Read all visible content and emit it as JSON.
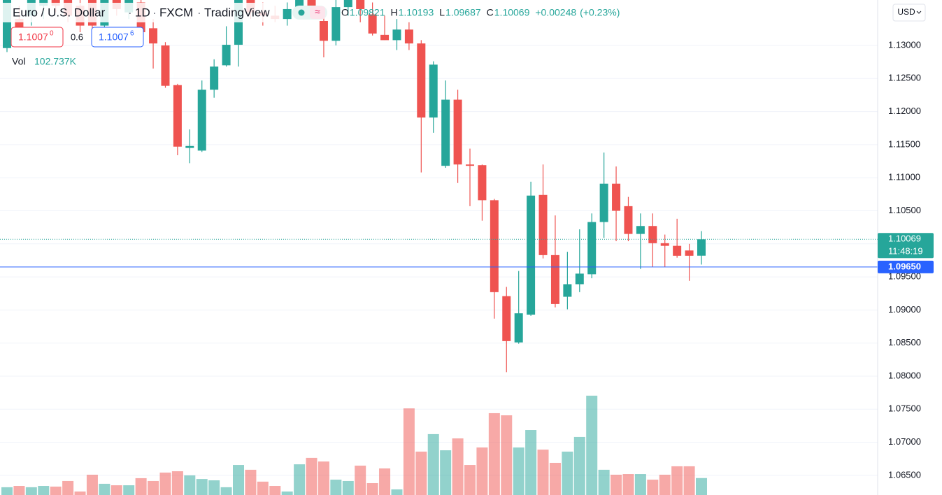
{
  "header": {
    "symbol": "Euro / U.S. Dollar",
    "interval": "1D",
    "source": "FXCM",
    "platform": "TradingView",
    "ohlc": [
      {
        "key": "O",
        "value": "1.09821"
      },
      {
        "key": "H",
        "value": "1.10193"
      },
      {
        "key": "L",
        "value": "1.09687"
      },
      {
        "key": "C",
        "value": "1.10069"
      }
    ],
    "change": "+0.00248",
    "change_pct": "(+0.23%)",
    "sell": "1.1007",
    "sell_sup": "0",
    "spread": "0.6",
    "buy": "1.1007",
    "buy_sup": "6",
    "vol_key": "Vol",
    "vol_value": "102.737K",
    "currency": "USD"
  },
  "chart_data": {
    "type": "candlestick",
    "up_color": "#26a69a",
    "down_color": "#ef5350",
    "ylim": [
      1.06203,
      1.13687
    ],
    "yticks": [
      {
        "value": 1.065,
        "label": "1.06500"
      },
      {
        "value": 1.07,
        "label": "1.07000"
      },
      {
        "value": 1.075,
        "label": "1.07500"
      },
      {
        "value": 1.08,
        "label": "1.08000"
      },
      {
        "value": 1.085,
        "label": "1.08500"
      },
      {
        "value": 1.09,
        "label": "1.09000"
      },
      {
        "value": 1.095,
        "label": "1.09500"
      },
      {
        "value": 1.1,
        "label": "1.10000"
      },
      {
        "value": 1.105,
        "label": "1.10500"
      },
      {
        "value": 1.11,
        "label": "1.11000"
      },
      {
        "value": 1.115,
        "label": "1.11500"
      },
      {
        "value": 1.12,
        "label": "1.12000"
      },
      {
        "value": 1.125,
        "label": "1.12500"
      },
      {
        "value": 1.13,
        "label": "1.13000"
      }
    ],
    "grid": true,
    "last_price": 1.10069,
    "countdown": "11:48:19",
    "alert_line": {
      "value": 1.0965,
      "label": "1.09650"
    },
    "volume_lim": [
      0,
      3000
    ],
    "open": [
      1.1296,
      1.134,
      1.1345,
      1.136,
      1.1385,
      1.137,
      1.136,
      1.139,
      1.133,
      1.138,
      1.135,
      1.1365,
      1.1326,
      1.13,
      1.124,
      1.1145,
      1.1141,
      1.1233,
      1.127,
      1.1301,
      1.1375,
      1.135,
      1.1345,
      1.134,
      1.1355,
      1.139,
      1.1337,
      1.1307,
      1.1358,
      1.1375,
      1.1347,
      1.1316,
      1.1308,
      1.1324,
      1.1303,
      1.1191,
      1.1118,
      1.1218,
      1.112,
      1.1119,
      1.1066,
      1.0921,
      1.0851,
      1.0893,
      1.1074,
      1.0983,
      1.092,
      1.0939,
      1.0954,
      1.1033,
      1.1091,
      1.1057,
      1.1015,
      1.1027,
      1.1001,
      1.0997,
      1.099,
      1.09821
    ],
    "high": [
      1.1375,
      1.136,
      1.138,
      1.139,
      1.1395,
      1.1385,
      1.1375,
      1.14,
      1.139,
      1.1395,
      1.138,
      1.138,
      1.134,
      1.1305,
      1.1242,
      1.1173,
      1.1247,
      1.1279,
      1.1329,
      1.138,
      1.139,
      1.1365,
      1.136,
      1.1365,
      1.1385,
      1.14,
      1.1345,
      1.137,
      1.1385,
      1.1385,
      1.1365,
      1.1345,
      1.134,
      1.1335,
      1.1308,
      1.1276,
      1.1247,
      1.1233,
      1.1144,
      1.112,
      1.1068,
      1.0935,
      1.0959,
      1.1094,
      1.112,
      1.1043,
      1.0988,
      1.1022,
      1.1046,
      1.1138,
      1.1117,
      1.1071,
      1.1046,
      1.1046,
      1.1014,
      1.1038,
      1.1,
      1.10193
    ],
    "low": [
      1.129,
      1.13,
      1.133,
      1.134,
      1.135,
      1.1335,
      1.132,
      1.1325,
      1.132,
      1.1345,
      1.134,
      1.13,
      1.1265,
      1.1236,
      1.1134,
      1.1122,
      1.1139,
      1.1221,
      1.1268,
      1.1268,
      1.134,
      1.133,
      1.1335,
      1.133,
      1.135,
      1.134,
      1.1282,
      1.13,
      1.1345,
      1.1335,
      1.1315,
      1.1308,
      1.1293,
      1.1293,
      1.1108,
      1.1168,
      1.1115,
      1.1092,
      1.1057,
      1.1035,
      1.0887,
      1.0806,
      1.0849,
      1.0891,
      1.0978,
      1.0904,
      1.0901,
      1.0927,
      1.0948,
      1.1009,
      1.1004,
      1.1004,
      1.0962,
      1.0965,
      1.0965,
      1.0979,
      1.0944,
      1.09687
    ],
    "close": [
      1.137,
      1.132,
      1.1375,
      1.1385,
      1.136,
      1.1345,
      1.133,
      1.133,
      1.138,
      1.1355,
      1.137,
      1.132,
      1.1303,
      1.1239,
      1.1147,
      1.1148,
      1.1233,
      1.1268,
      1.1301,
      1.1375,
      1.135,
      1.1345,
      1.134,
      1.1355,
      1.138,
      1.1355,
      1.1307,
      1.1358,
      1.1375,
      1.1355,
      1.1318,
      1.1308,
      1.1324,
      1.1303,
      1.1191,
      1.1271,
      1.1218,
      1.112,
      1.1118,
      1.1066,
      1.0927,
      1.0853,
      1.0895,
      1.1073,
      1.0983,
      1.0909,
      1.0939,
      1.0955,
      1.1033,
      1.1091,
      1.105,
      1.1015,
      1.1027,
      1.1001,
      1.0997,
      1.0982,
      1.0982,
      1.10069
    ],
    "volume": [
      47,
      55,
      47,
      55,
      51,
      85,
      21,
      123,
      68,
      59,
      59,
      102,
      85,
      136,
      144,
      119,
      97,
      89,
      47,
      182,
      153,
      81,
      55,
      21,
      186,
      225,
      203,
      93,
      85,
      178,
      72,
      161,
      34,
      525,
      263,
      369,
      271,
      343,
      182,
      288,
      496,
      483,
      288,
      394,
      275,
      195,
      263,
      352,
      602,
      153,
      123,
      127,
      127,
      93,
      123,
      174,
      174,
      102.737
    ]
  }
}
